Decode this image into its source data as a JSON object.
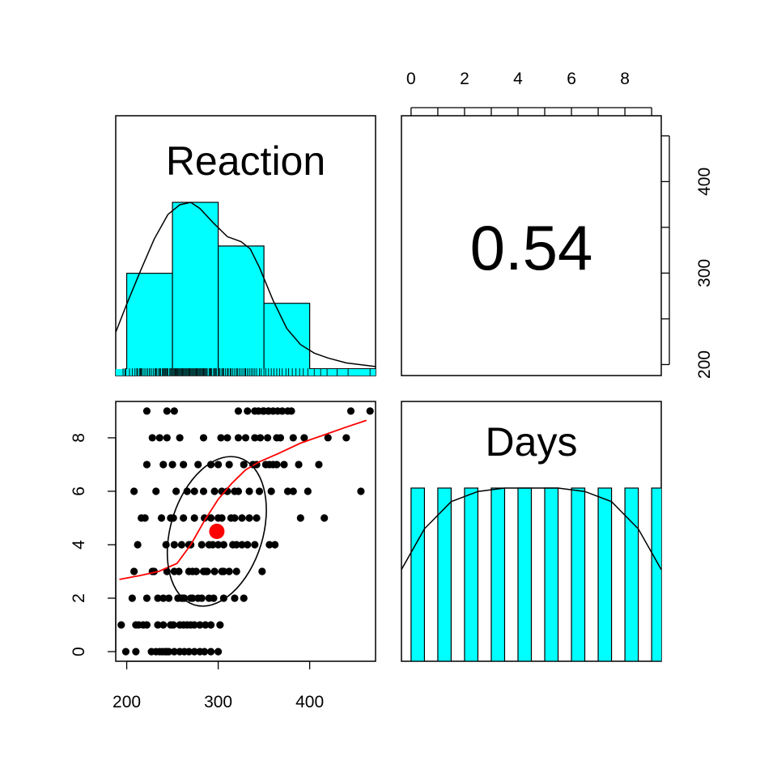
{
  "chart_data": {
    "type": "pairs",
    "variables": [
      "Reaction",
      "Days"
    ],
    "correlation": "0.54",
    "colors": {
      "hist_fill": "#00ffff",
      "points": "#000000",
      "smooth_line": "#ff0000",
      "centroid": "#ff0000",
      "ellipse": "#000000",
      "density": "#000000"
    },
    "reaction_axis": {
      "range": [
        188,
        472
      ],
      "ticks": [
        200,
        300,
        400
      ],
      "right_ticks": [
        200,
        250,
        300,
        350,
        400,
        450
      ],
      "right_labels": [
        200,
        300,
        400
      ]
    },
    "days_axis": {
      "range": [
        -0.36,
        9.36
      ],
      "ticks": [
        0,
        2,
        4,
        6,
        8
      ],
      "top_ticks": [
        0,
        1,
        2,
        3,
        4,
        5,
        6,
        7,
        8,
        9
      ],
      "top_labels": [
        0,
        2,
        4,
        6,
        8
      ]
    },
    "reaction_histogram": {
      "breaks": [
        200,
        250,
        300,
        350,
        400,
        450,
        500
      ],
      "counts": [
        36,
        62,
        46,
        25,
        1,
        1
      ]
    },
    "reaction_density": [
      [
        188,
        0.0032
      ],
      [
        200,
        0.0055
      ],
      [
        215,
        0.0082
      ],
      [
        230,
        0.0108
      ],
      [
        245,
        0.0128
      ],
      [
        258,
        0.0136
      ],
      [
        270,
        0.0138
      ],
      [
        280,
        0.0133
      ],
      [
        295,
        0.0121
      ],
      [
        310,
        0.011
      ],
      [
        325,
        0.0106
      ],
      [
        335,
        0.01
      ],
      [
        345,
        0.0085
      ],
      [
        360,
        0.0058
      ],
      [
        375,
        0.0035
      ],
      [
        390,
        0.0022
      ],
      [
        405,
        0.0015
      ],
      [
        420,
        0.0011
      ],
      [
        440,
        0.0007
      ],
      [
        472,
        0.0004
      ]
    ],
    "reaction_rug": [
      196,
      198,
      199,
      203,
      206,
      209,
      211,
      212,
      214,
      215,
      216,
      217,
      219,
      221,
      223,
      225,
      225,
      227,
      229,
      231,
      232,
      233,
      235,
      236,
      237,
      239,
      240,
      241,
      242,
      243,
      244,
      245,
      247,
      248,
      249,
      250,
      251,
      252,
      253,
      254,
      255,
      255,
      256,
      257,
      258,
      259,
      260,
      261,
      262,
      263,
      264,
      265,
      266,
      267,
      268,
      269,
      270,
      271,
      272,
      273,
      274,
      275,
      276,
      277,
      278,
      279,
      280,
      281,
      282,
      283,
      284,
      285,
      286,
      287,
      288,
      290,
      291,
      292,
      293,
      295,
      296,
      297,
      298,
      300,
      301,
      302,
      304,
      305,
      306,
      308,
      310,
      311,
      313,
      314,
      316,
      318,
      320,
      321,
      323,
      325,
      327,
      329,
      330,
      332,
      334,
      336,
      338,
      340,
      342,
      345,
      347,
      350,
      352,
      355,
      358,
      361,
      364,
      367,
      370,
      374,
      377,
      381,
      385,
      389,
      393,
      398,
      405,
      412,
      419,
      430,
      442,
      466
    ],
    "days_histogram": {
      "bin_width": 0.5,
      "counts": [
        18,
        18,
        18,
        18,
        18,
        18,
        18,
        18,
        18,
        18
      ],
      "max_count": 18
    },
    "days_density": [
      [
        -0.36,
        0.054
      ],
      [
        0.5,
        0.078
      ],
      [
        1.5,
        0.094
      ],
      [
        2.5,
        0.1
      ],
      [
        3.5,
        0.102
      ],
      [
        4.5,
        0.102
      ],
      [
        5.5,
        0.102
      ],
      [
        6.5,
        0.1
      ],
      [
        7.5,
        0.094
      ],
      [
        8.5,
        0.078
      ],
      [
        9.36,
        0.054
      ]
    ],
    "scatter_points": [
      [
        199,
        0
      ],
      [
        213,
        1
      ],
      [
        222,
        2
      ],
      [
        228,
        3
      ],
      [
        243,
        4
      ],
      [
        251,
        5
      ],
      [
        266,
        6
      ],
      [
        292,
        7
      ],
      [
        303,
        8
      ],
      [
        349,
        9
      ],
      [
        210,
        0
      ],
      [
        234,
        1
      ],
      [
        246,
        2
      ],
      [
        257,
        3
      ],
      [
        268,
        4
      ],
      [
        285,
        5
      ],
      [
        310,
        6
      ],
      [
        338,
        7
      ],
      [
        368,
        8
      ],
      [
        380,
        9
      ],
      [
        227,
        0
      ],
      [
        240,
        1
      ],
      [
        256,
        2
      ],
      [
        272,
        3
      ],
      [
        290,
        4
      ],
      [
        304,
        5
      ],
      [
        322,
        6
      ],
      [
        352,
        7
      ],
      [
        382,
        8
      ],
      [
        445,
        9
      ],
      [
        232,
        0
      ],
      [
        248,
        1
      ],
      [
        260,
        2
      ],
      [
        276,
        3
      ],
      [
        300,
        4
      ],
      [
        314,
        5
      ],
      [
        334,
        6
      ],
      [
        360,
        7
      ],
      [
        394,
        8
      ],
      [
        466,
        9
      ],
      [
        236,
        0
      ],
      [
        251,
        1
      ],
      [
        263,
        2
      ],
      [
        284,
        3
      ],
      [
        306,
        4
      ],
      [
        318,
        5
      ],
      [
        345,
        6
      ],
      [
        372,
        7
      ],
      [
        420,
        8
      ],
      [
        340,
        9
      ],
      [
        242,
        0
      ],
      [
        258,
        1
      ],
      [
        270,
        2
      ],
      [
        288,
        3
      ],
      [
        320,
        4
      ],
      [
        326,
        5
      ],
      [
        358,
        6
      ],
      [
        388,
        7
      ],
      [
        440,
        8
      ],
      [
        355,
        9
      ],
      [
        246,
        0
      ],
      [
        262,
        1
      ],
      [
        278,
        2
      ],
      [
        296,
        3
      ],
      [
        326,
        4
      ],
      [
        334,
        5
      ],
      [
        376,
        6
      ],
      [
        410,
        7
      ],
      [
        258,
        8
      ],
      [
        360,
        9
      ],
      [
        252,
        0
      ],
      [
        266,
        1
      ],
      [
        282,
        2
      ],
      [
        304,
        3
      ],
      [
        332,
        4
      ],
      [
        342,
        5
      ],
      [
        382,
        6
      ],
      [
        250,
        7
      ],
      [
        284,
        8
      ],
      [
        365,
        9
      ],
      [
        258,
        0
      ],
      [
        270,
        1
      ],
      [
        290,
        2
      ],
      [
        312,
        3
      ],
      [
        356,
        4
      ],
      [
        390,
        5
      ],
      [
        398,
        6
      ],
      [
        222,
        7
      ],
      [
        322,
        8
      ],
      [
        370,
        9
      ],
      [
        263,
        0
      ],
      [
        274,
        1
      ],
      [
        295,
        2
      ],
      [
        320,
        3
      ],
      [
        362,
        4
      ],
      [
        416,
        5
      ],
      [
        456,
        6
      ],
      [
        240,
        7
      ],
      [
        330,
        8
      ],
      [
        376,
        9
      ],
      [
        268,
        0
      ],
      [
        280,
        1
      ],
      [
        306,
        2
      ],
      [
        348,
        3
      ],
      [
        212,
        4
      ],
      [
        216,
        5
      ],
      [
        208,
        6
      ],
      [
        262,
        7
      ],
      [
        340,
        8
      ],
      [
        244,
        9
      ],
      [
        274,
        0
      ],
      [
        286,
        1
      ],
      [
        318,
        2
      ],
      [
        230,
        3
      ],
      [
        252,
        4
      ],
      [
        220,
        5
      ],
      [
        232,
        6
      ],
      [
        278,
        7
      ],
      [
        354,
        8
      ],
      [
        252,
        9
      ],
      [
        280,
        0
      ],
      [
        292,
        1
      ],
      [
        328,
        2
      ],
      [
        208,
        3
      ],
      [
        260,
        4
      ],
      [
        238,
        5
      ],
      [
        254,
        6
      ],
      [
        312,
        7
      ],
      [
        364,
        8
      ],
      [
        222,
        9
      ],
      [
        285,
        0
      ],
      [
        302,
        1
      ],
      [
        240,
        2
      ],
      [
        244,
        3
      ],
      [
        270,
        4
      ],
      [
        248,
        5
      ],
      [
        274,
        6
      ],
      [
        328,
        7
      ],
      [
        236,
        8
      ],
      [
        322,
        9
      ],
      [
        292,
        0
      ],
      [
        194,
        1
      ],
      [
        206,
        2
      ],
      [
        252,
        3
      ],
      [
        282,
        4
      ],
      [
        262,
        5
      ],
      [
        284,
        6
      ],
      [
        364,
        7
      ],
      [
        228,
        8
      ],
      [
        332,
        9
      ],
      [
        300,
        0
      ],
      [
        210,
        1
      ],
      [
        234,
        2
      ],
      [
        268,
        3
      ],
      [
        294,
        4
      ],
      [
        274,
        5
      ],
      [
        296,
        6
      ],
      [
        300,
        7
      ],
      [
        244,
        8
      ],
      [
        344,
        9
      ],
      [
        239,
        0
      ],
      [
        218,
        1
      ],
      [
        262,
        2
      ],
      [
        286,
        3
      ],
      [
        316,
        4
      ],
      [
        292,
        5
      ],
      [
        304,
        6
      ],
      [
        342,
        7
      ],
      [
        310,
        8
      ],
      [
        350,
        9
      ],
      [
        244,
        0
      ],
      [
        222,
        1
      ],
      [
        272,
        2
      ],
      [
        306,
        3
      ],
      [
        340,
        4
      ],
      [
        300,
        5
      ],
      [
        318,
        6
      ],
      [
        356,
        7
      ],
      [
        346,
        8
      ],
      [
        355,
        9
      ]
    ],
    "smooth_line": [
      [
        192,
        2.7
      ],
      [
        215,
        2.85
      ],
      [
        235,
        3.0
      ],
      [
        255,
        3.3
      ],
      [
        270,
        4.0
      ],
      [
        285,
        4.9
      ],
      [
        300,
        5.7
      ],
      [
        315,
        6.3
      ],
      [
        330,
        6.8
      ],
      [
        345,
        7.1
      ],
      [
        365,
        7.4
      ],
      [
        390,
        7.8
      ],
      [
        415,
        8.1
      ],
      [
        440,
        8.4
      ],
      [
        462,
        8.65
      ]
    ],
    "centroid": [
      298.5,
      4.5
    ],
    "ellipse": {
      "center": [
        298.5,
        4.5
      ],
      "semi_axes_px": [
        57,
        95
      ],
      "rotation_deg": 17
    }
  }
}
